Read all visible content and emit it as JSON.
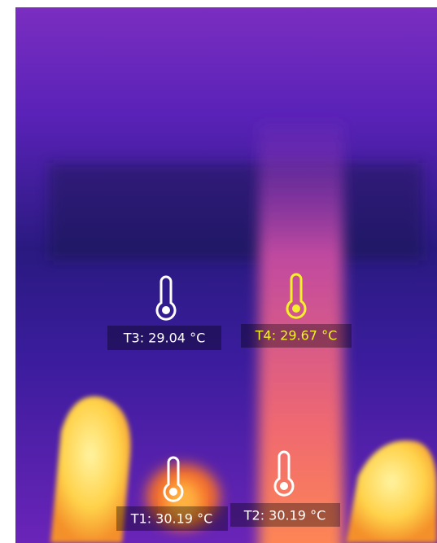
{
  "markers": [
    {
      "label": "T3: 29.04 °C"
    },
    {
      "label": "T4: 29.67 °C"
    },
    {
      "label": "T1: 30.19 °C"
    },
    {
      "label": "T2: 30.19 °C"
    }
  ]
}
